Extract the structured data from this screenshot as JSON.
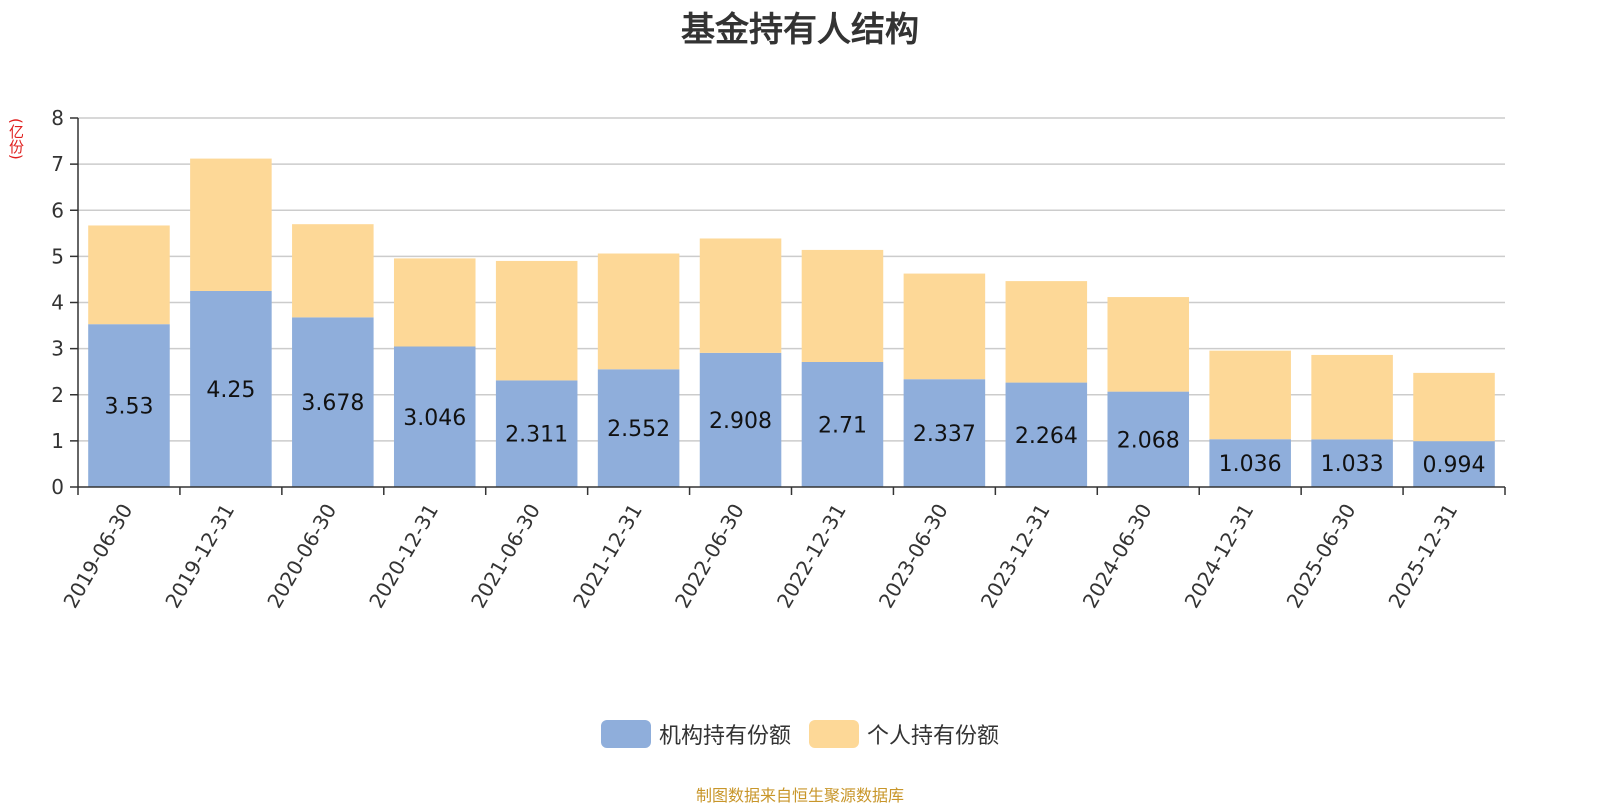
{
  "chart_data": {
    "type": "bar",
    "stacked": true,
    "title": "基金持有人结构",
    "unit_label": "(亿份)",
    "categories": [
      "2019-06-30",
      "2019-12-31",
      "2020-06-30",
      "2020-12-31",
      "2021-06-30",
      "2021-12-31",
      "2022-06-30",
      "2022-12-31",
      "2023-06-30",
      "2023-12-31",
      "2024-06-30",
      "2024-12-31",
      "2025-06-30",
      "2025-12-31"
    ],
    "series": [
      {
        "name": "机构持有份额",
        "color": "#8faedb",
        "values": [
          3.53,
          4.25,
          3.678,
          3.046,
          2.311,
          2.552,
          2.908,
          2.71,
          2.337,
          2.264,
          2.068,
          1.036,
          1.033,
          0.994
        ],
        "labels": [
          "3.53",
          "4.25",
          "3.678",
          "3.046",
          "2.311",
          "2.552",
          "2.908",
          "2.71",
          "2.337",
          "2.264",
          "2.068",
          "1.036",
          "1.033",
          "0.994"
        ]
      },
      {
        "name": "个人持有份额",
        "color": "#fdd897",
        "values": [
          2.14,
          2.87,
          2.02,
          1.91,
          2.59,
          2.51,
          2.48,
          2.43,
          2.29,
          2.2,
          2.05,
          1.92,
          1.83,
          1.48
        ]
      }
    ],
    "ylim": [
      0,
      8
    ],
    "yticks": [
      "0",
      "1",
      "2",
      "3",
      "4",
      "5",
      "6",
      "7",
      "8"
    ],
    "grid": true,
    "legend_position": "bottom"
  },
  "source_text": "制图数据来自恒生聚源数据库"
}
